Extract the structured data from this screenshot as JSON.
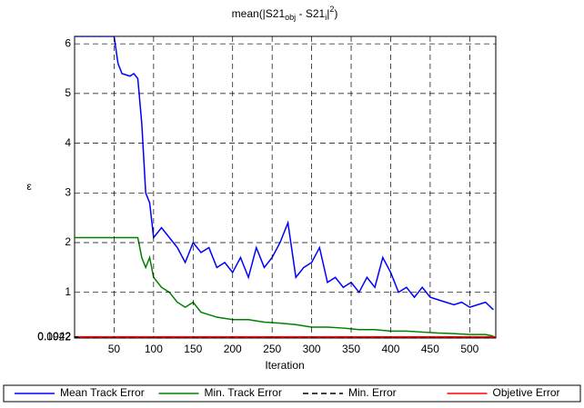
{
  "chart_data": {
    "type": "line",
    "title": [
      "mean(|S21",
      "obj",
      " - S21",
      "i",
      "|",
      "2",
      ")"
    ],
    "xlabel": "Iteration",
    "ylabel": "ε",
    "xlim": [
      0,
      533
    ],
    "xticks": [
      50,
      100,
      150,
      200,
      250,
      300,
      350,
      400,
      450,
      500
    ],
    "ylim": [
      0.08,
      6.15
    ],
    "yticks": [
      0.0922,
      0.1042,
      1,
      2,
      3,
      4,
      5,
      6
    ],
    "grid": true,
    "legend": "bottom",
    "series": [
      {
        "name": "Mean Track Error",
        "color": "#0000ff",
        "dash": "solid",
        "x": [
          0,
          10,
          20,
          30,
          40,
          50,
          55,
          60,
          70,
          75,
          80,
          85,
          90,
          95,
          100,
          110,
          120,
          130,
          140,
          150,
          160,
          170,
          180,
          190,
          200,
          210,
          220,
          230,
          240,
          250,
          260,
          270,
          280,
          290,
          300,
          310,
          320,
          330,
          340,
          350,
          360,
          370,
          380,
          390,
          400,
          410,
          420,
          430,
          440,
          450,
          460,
          470,
          480,
          490,
          500,
          510,
          520,
          530
        ],
        "values": [
          6.15,
          6.15,
          6.15,
          6.15,
          6.15,
          6.15,
          5.6,
          5.4,
          5.35,
          5.4,
          5.3,
          4.4,
          3.0,
          2.8,
          2.1,
          2.3,
          2.1,
          1.9,
          1.6,
          2.0,
          1.8,
          1.9,
          1.5,
          1.6,
          1.4,
          1.7,
          1.3,
          1.9,
          1.5,
          1.7,
          2.0,
          2.4,
          1.3,
          1.5,
          1.6,
          1.9,
          1.2,
          1.3,
          1.1,
          1.2,
          1.0,
          1.3,
          1.1,
          1.7,
          1.4,
          1.0,
          1.1,
          0.9,
          1.1,
          0.9,
          0.85,
          0.8,
          0.75,
          0.8,
          0.7,
          0.75,
          0.8,
          0.65
        ]
      },
      {
        "name": "Min. Track Error",
        "color": "#008000",
        "dash": "solid",
        "x": [
          0,
          40,
          80,
          85,
          90,
          95,
          100,
          110,
          120,
          130,
          140,
          150,
          160,
          170,
          180,
          200,
          220,
          240,
          260,
          280,
          300,
          320,
          340,
          360,
          380,
          400,
          420,
          440,
          460,
          480,
          500,
          520,
          530
        ],
        "values": [
          2.1,
          2.1,
          2.1,
          1.7,
          1.5,
          1.7,
          1.3,
          1.1,
          1.0,
          0.8,
          0.7,
          0.8,
          0.6,
          0.55,
          0.5,
          0.45,
          0.45,
          0.4,
          0.38,
          0.35,
          0.3,
          0.3,
          0.28,
          0.25,
          0.25,
          0.22,
          0.22,
          0.2,
          0.18,
          0.17,
          0.15,
          0.15,
          0.12
        ]
      },
      {
        "name": "Min. Error",
        "color": "#000000",
        "dash": "dashed",
        "x": [
          0,
          533
        ],
        "values": [
          0.0922,
          0.0922
        ]
      },
      {
        "name": "Objetive Error",
        "color": "#ff0000",
        "dash": "solid",
        "x": [
          0,
          533
        ],
        "values": [
          0.1042,
          0.1042
        ]
      }
    ]
  }
}
